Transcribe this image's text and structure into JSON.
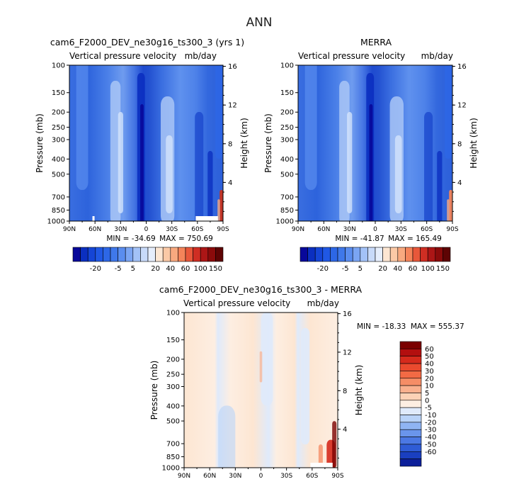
{
  "figure": {
    "title": "ANN"
  },
  "colors": {
    "neg_dark": "#08089a",
    "blue_mid": "#3a6ee0",
    "blue_light": "#8fb8f3",
    "pale_blue": "#d7e7fb",
    "pale_peach": "#fde6d2",
    "orange": "#f07a4c",
    "dark_red": "#8b0b0b",
    "nodata": "#ffffff"
  },
  "chart_data": [
    {
      "id": "model",
      "type": "heatmap",
      "title": "cam6_F2000_DEV_ne30g16_ts300_3 (yrs 1)",
      "subtitle_left": "Vertical pressure velocity",
      "subtitle_right": "mb/day",
      "ylabel": "Pressure (mb)",
      "y2label": "Height (km)",
      "x_ticks": [
        "90N",
        "60N",
        "30N",
        "0",
        "30S",
        "60S",
        "90S"
      ],
      "x_range": [
        90,
        -90
      ],
      "y_ticks": [
        "100",
        "150",
        "200",
        "250",
        "300",
        "400",
        "500",
        "700",
        "850",
        "1000"
      ],
      "y_tick_values": [
        100,
        150,
        200,
        250,
        300,
        400,
        500,
        700,
        850,
        1000
      ],
      "y_range": [
        100,
        1000
      ],
      "y2_ticks": [
        "16",
        "12",
        "8",
        "4"
      ],
      "y2_tick_values": [
        16,
        12,
        8,
        4
      ],
      "min_label": "MIN = -34.69",
      "max_label": "MAX = 750.69",
      "min": -34.69,
      "max": 750.69,
      "colorbar_labels": [
        "-20",
        "-5",
        "5",
        "20",
        "40",
        "60",
        "100",
        "150"
      ],
      "colorbar_levels": [
        -30,
        -25,
        -20,
        -15,
        -10,
        -5,
        0,
        5,
        10,
        15,
        20,
        30,
        40,
        50,
        60,
        80,
        100,
        125,
        150
      ],
      "colorbar_colors": [
        "#08089a",
        "#0b2fc0",
        "#1545d6",
        "#2058e4",
        "#2d67e6",
        "#3f78ea",
        "#5a8def",
        "#7ba5f3",
        "#a3c2f7",
        "#c8daf9",
        "#e6eefc",
        "#fde6d2",
        "#fbc9a6",
        "#f8a97f",
        "#f4845a",
        "#e8573a",
        "#cf2e23",
        "#ac1616",
        "#8b0b0b",
        "#5e0404"
      ]
    },
    {
      "id": "obs",
      "type": "heatmap",
      "title": "MERRA",
      "subtitle_left": "Vertical pressure velocity",
      "subtitle_right": "mb/day",
      "ylabel": "Pressure (mb)",
      "y2label": "Height (km)",
      "x_ticks": [
        "90N",
        "60N",
        "30N",
        "0",
        "30S",
        "60S",
        "90S"
      ],
      "x_range": [
        90,
        -90
      ],
      "y_ticks": [
        "100",
        "150",
        "200",
        "250",
        "300",
        "400",
        "500",
        "700",
        "850",
        "1000"
      ],
      "y_tick_values": [
        100,
        150,
        200,
        250,
        300,
        400,
        500,
        700,
        850,
        1000
      ],
      "y_range": [
        100,
        1000
      ],
      "y2_ticks": [
        "16",
        "12",
        "8",
        "4"
      ],
      "y2_tick_values": [
        16,
        12,
        8,
        4
      ],
      "min_label": "MIN = -41.87",
      "max_label": "MAX = 165.49",
      "min": -41.87,
      "max": 165.49,
      "colorbar_labels": [
        "-20",
        "-5",
        "5",
        "20",
        "40",
        "60",
        "100",
        "150"
      ],
      "colorbar_levels": [
        -30,
        -25,
        -20,
        -15,
        -10,
        -5,
        0,
        5,
        10,
        15,
        20,
        30,
        40,
        50,
        60,
        80,
        100,
        125,
        150
      ],
      "colorbar_colors": [
        "#08089a",
        "#0b2fc0",
        "#1545d6",
        "#2058e4",
        "#2d67e6",
        "#3f78ea",
        "#5a8def",
        "#7ba5f3",
        "#a3c2f7",
        "#c8daf9",
        "#e6eefc",
        "#fde6d2",
        "#fbc9a6",
        "#f8a97f",
        "#f4845a",
        "#e8573a",
        "#cf2e23",
        "#ac1616",
        "#8b0b0b",
        "#5e0404"
      ]
    },
    {
      "id": "diff",
      "type": "heatmap",
      "title": "cam6_F2000_DEV_ne30g16_ts300_3 - MERRA",
      "subtitle_left": "Vertical pressure velocity",
      "subtitle_right": "mb/day",
      "ylabel": "Pressure (mb)",
      "y2label": "Height (km)",
      "x_ticks": [
        "90N",
        "60N",
        "30N",
        "0",
        "30S",
        "60S",
        "90S"
      ],
      "x_range": [
        90,
        -90
      ],
      "y_ticks": [
        "100",
        "150",
        "200",
        "250",
        "300",
        "400",
        "500",
        "700",
        "850",
        "1000"
      ],
      "y_tick_values": [
        100,
        150,
        200,
        250,
        300,
        400,
        500,
        700,
        850,
        1000
      ],
      "y_range": [
        100,
        1000
      ],
      "y2_ticks": [
        "16",
        "12",
        "8",
        "4"
      ],
      "y2_tick_values": [
        16,
        12,
        8,
        4
      ],
      "min_label": "MIN = -18.33",
      "max_label": "MAX = 555.37",
      "min": -18.33,
      "max": 555.37,
      "colorbar_labels": [
        "60",
        "50",
        "40",
        "30",
        "20",
        "10",
        "5",
        "0",
        "-5",
        "-10",
        "-20",
        "-30",
        "-40",
        "-50",
        "-60"
      ],
      "colorbar_colors": [
        "#7a0000",
        "#b30f0f",
        "#d52a1c",
        "#ea4a2e",
        "#f26a44",
        "#f58d66",
        "#f9b08e",
        "#fcd2b6",
        "#fdeee2",
        "#dfeafb",
        "#b9d3f8",
        "#8fb4f3",
        "#6a95ec",
        "#4b78e4",
        "#2f5cd6",
        "#1a3fc0",
        "#0c1f9a"
      ]
    }
  ]
}
